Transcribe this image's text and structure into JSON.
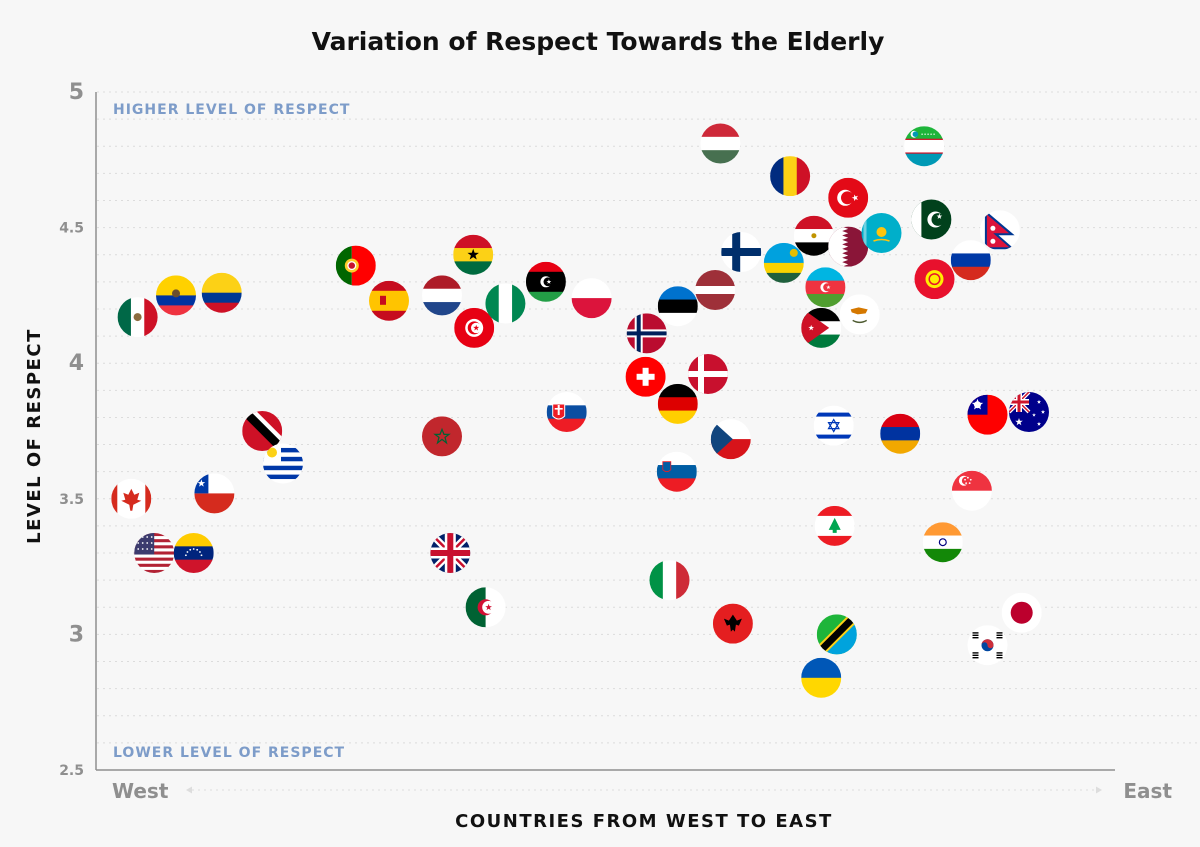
{
  "chart_data": {
    "type": "scatter",
    "title": "Variation of Respect Towards the Elderly",
    "xlabel": "COUNTRIES FROM WEST TO EAST",
    "ylabel": "LEVEL OF RESPECT",
    "x_start_label": "West",
    "x_end_label": "East",
    "top_label": "HIGHER LEVEL OF RESPECT",
    "bottom_label": "LOWER LEVEL OF RESPECT",
    "ylim": [
      2.5,
      5
    ],
    "xlim": [
      0,
      100
    ],
    "y_ticks": [
      {
        "value": 2.5,
        "label": "2.5",
        "major": false
      },
      {
        "value": 3,
        "label": "3",
        "major": true
      },
      {
        "value": 3.5,
        "label": "3.5",
        "major": false
      },
      {
        "value": 4,
        "label": "4",
        "major": true
      },
      {
        "value": 4.5,
        "label": "4.5",
        "major": false
      },
      {
        "value": 5,
        "label": "5",
        "major": true
      }
    ],
    "grid": true,
    "points": [
      {
        "country": "Mexico",
        "x": 4.0,
        "y": 4.17,
        "flag": "mexico"
      },
      {
        "country": "Ecuador",
        "x": 7.7,
        "y": 4.25,
        "flag": "ecuador"
      },
      {
        "country": "Colombia",
        "x": 12.1,
        "y": 4.26,
        "flag": "colombia"
      },
      {
        "country": "Canada",
        "x": 3.4,
        "y": 3.5,
        "flag": "canada"
      },
      {
        "country": "United States",
        "x": 5.6,
        "y": 3.3,
        "flag": "usa"
      },
      {
        "country": "Venezuela",
        "x": 9.4,
        "y": 3.3,
        "flag": "venezuela"
      },
      {
        "country": "Chile",
        "x": 11.4,
        "y": 3.52,
        "flag": "chile"
      },
      {
        "country": "Trinidad and Tobago",
        "x": 16.0,
        "y": 3.75,
        "flag": "trinidad"
      },
      {
        "country": "Uruguay",
        "x": 18.0,
        "y": 3.63,
        "flag": "uruguay"
      },
      {
        "country": "Portugal",
        "x": 25.0,
        "y": 4.36,
        "flag": "portugal"
      },
      {
        "country": "Spain",
        "x": 28.2,
        "y": 4.23,
        "flag": "spain"
      },
      {
        "country": "Morocco",
        "x": 33.3,
        "y": 3.73,
        "flag": "morocco"
      },
      {
        "country": "United Kingdom",
        "x": 34.1,
        "y": 3.3,
        "flag": "uk"
      },
      {
        "country": "Netherlands",
        "x": 33.3,
        "y": 4.25,
        "flag": "netherlands"
      },
      {
        "country": "Ghana",
        "x": 36.3,
        "y": 4.4,
        "flag": "ghana"
      },
      {
        "country": "Tunisia",
        "x": 36.4,
        "y": 4.13,
        "flag": "tunisia"
      },
      {
        "country": "Algeria",
        "x": 37.5,
        "y": 3.1,
        "flag": "algeria"
      },
      {
        "country": "Nigeria",
        "x": 39.4,
        "y": 4.22,
        "flag": "nigeria"
      },
      {
        "country": "Libya",
        "x": 43.3,
        "y": 4.3,
        "flag": "libya"
      },
      {
        "country": "Slovakia",
        "x": 45.3,
        "y": 3.82,
        "flag": "slovakia"
      },
      {
        "country": "Poland",
        "x": 47.7,
        "y": 4.24,
        "flag": "poland"
      },
      {
        "country": "Norway",
        "x": 53.0,
        "y": 4.11,
        "flag": "norway"
      },
      {
        "country": "Switzerland",
        "x": 52.9,
        "y": 3.95,
        "flag": "switzerland"
      },
      {
        "country": "Estonia",
        "x": 56.0,
        "y": 4.21,
        "flag": "estonia"
      },
      {
        "country": "Germany",
        "x": 56.0,
        "y": 3.85,
        "flag": "germany"
      },
      {
        "country": "Slovenia",
        "x": 55.9,
        "y": 3.6,
        "flag": "slovenia"
      },
      {
        "country": "Italy",
        "x": 55.2,
        "y": 3.2,
        "flag": "italy"
      },
      {
        "country": "Hungary",
        "x": 60.1,
        "y": 4.81,
        "flag": "hungary"
      },
      {
        "country": "Latvia",
        "x": 59.6,
        "y": 4.27,
        "flag": "latvia"
      },
      {
        "country": "Denmark",
        "x": 58.9,
        "y": 3.96,
        "flag": "denmark"
      },
      {
        "country": "Czech Republic",
        "x": 61.1,
        "y": 3.72,
        "flag": "czech"
      },
      {
        "country": "Albania",
        "x": 61.3,
        "y": 3.04,
        "flag": "albania"
      },
      {
        "country": "Finland",
        "x": 62.1,
        "y": 4.41,
        "flag": "finland"
      },
      {
        "country": "Romania",
        "x": 66.8,
        "y": 4.69,
        "flag": "romania"
      },
      {
        "country": "Rwanda",
        "x": 66.2,
        "y": 4.37,
        "flag": "rwanda"
      },
      {
        "country": "Egypt",
        "x": 69.1,
        "y": 4.47,
        "flag": "egypt"
      },
      {
        "country": "Azerbaijan",
        "x": 70.2,
        "y": 4.28,
        "flag": "azerbaijan"
      },
      {
        "country": "Jordan",
        "x": 69.8,
        "y": 4.13,
        "flag": "jordan"
      },
      {
        "country": "Israel",
        "x": 71.0,
        "y": 3.77,
        "flag": "israel"
      },
      {
        "country": "Lebanon",
        "x": 71.1,
        "y": 3.4,
        "flag": "lebanon"
      },
      {
        "country": "Tanzania",
        "x": 71.3,
        "y": 3.0,
        "flag": "tanzania"
      },
      {
        "country": "Ukraine",
        "x": 69.8,
        "y": 2.84,
        "flag": "ukraine"
      },
      {
        "country": "Turkey",
        "x": 72.4,
        "y": 4.61,
        "flag": "turkey"
      },
      {
        "country": "Qatar",
        "x": 72.4,
        "y": 4.43,
        "flag": "qatar"
      },
      {
        "country": "Cyprus",
        "x": 73.5,
        "y": 4.18,
        "flag": "cyprus"
      },
      {
        "country": "Kazakhstan",
        "x": 75.6,
        "y": 4.48,
        "flag": "kazakhstan"
      },
      {
        "country": "Armenia",
        "x": 77.4,
        "y": 3.74,
        "flag": "armenia"
      },
      {
        "country": "Uzbekistan",
        "x": 79.7,
        "y": 4.8,
        "flag": "uzbekistan"
      },
      {
        "country": "Pakistan",
        "x": 80.4,
        "y": 4.53,
        "flag": "pakistan"
      },
      {
        "country": "Kyrgyzstan",
        "x": 80.7,
        "y": 4.31,
        "flag": "kyrgyzstan"
      },
      {
        "country": "India",
        "x": 81.5,
        "y": 3.34,
        "flag": "india"
      },
      {
        "country": "Russia",
        "x": 84.2,
        "y": 4.38,
        "flag": "russia"
      },
      {
        "country": "Singapore",
        "x": 84.3,
        "y": 3.53,
        "flag": "singapore"
      },
      {
        "country": "Taiwan",
        "x": 85.8,
        "y": 3.81,
        "flag": "taiwan"
      },
      {
        "country": "South Korea",
        "x": 85.8,
        "y": 2.96,
        "flag": "southkorea"
      },
      {
        "country": "Nepal",
        "x": 87.0,
        "y": 4.49,
        "flag": "nepal"
      },
      {
        "country": "Japan",
        "x": 89.1,
        "y": 3.08,
        "flag": "japan"
      },
      {
        "country": "Australia",
        "x": 89.8,
        "y": 3.82,
        "flag": "australia"
      }
    ]
  }
}
